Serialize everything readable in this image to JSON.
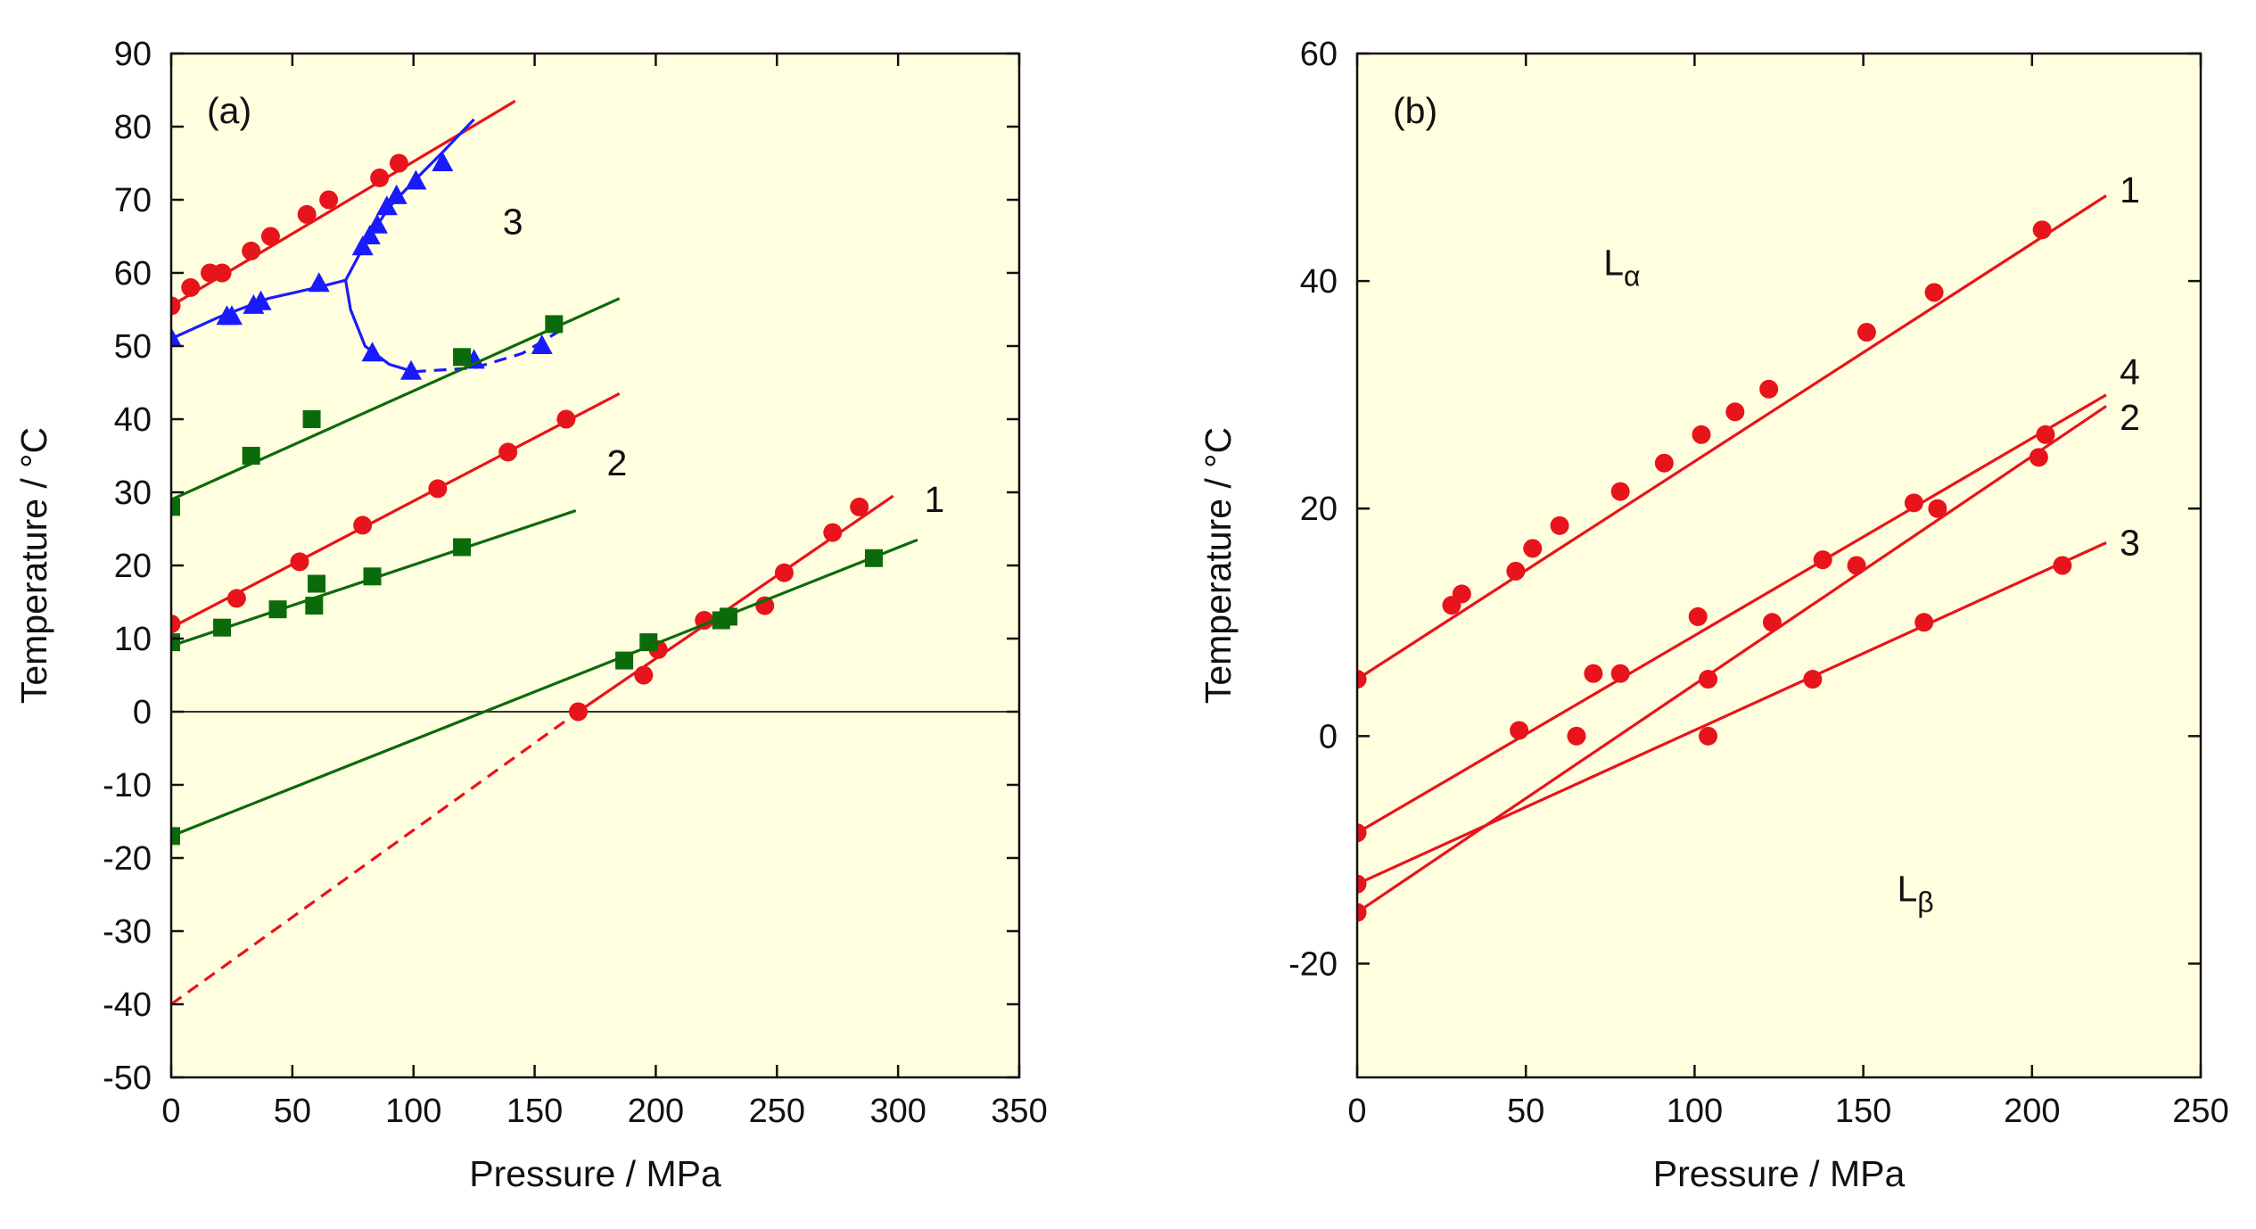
{
  "chart_data": [
    {
      "type": "line",
      "panel_label": "(a)",
      "xlabel": "Pressure / MPa",
      "ylabel": "Temperature / °C",
      "xlim": [
        0,
        350
      ],
      "ylim": [
        -50,
        90
      ],
      "xticks": [
        0,
        50,
        100,
        150,
        200,
        250,
        300,
        350
      ],
      "yticks": [
        -50,
        -40,
        -30,
        -20,
        -10,
        0,
        10,
        20,
        30,
        40,
        50,
        60,
        70,
        80,
        90
      ],
      "background": "#ffffe0",
      "reference_line_y": 0,
      "series": [
        {
          "label": "3",
          "color": "#e8141b",
          "marker": "circle",
          "points": [
            [
              0,
              55.5
            ],
            [
              8,
              58
            ],
            [
              16,
              60
            ],
            [
              21,
              60
            ],
            [
              33,
              63
            ],
            [
              41,
              65
            ],
            [
              56,
              68
            ],
            [
              65,
              70
            ],
            [
              86,
              73
            ],
            [
              94,
              75
            ]
          ],
          "line": [
            [
              0,
              55.5
            ],
            [
              142,
              83.5
            ]
          ]
        },
        {
          "color": "#1a1aff",
          "marker": "triangle",
          "points": [
            [
              0,
              51
            ],
            [
              23,
              54
            ],
            [
              25,
              54
            ],
            [
              34,
              55.5
            ],
            [
              37,
              56
            ],
            [
              61,
              58.5
            ],
            [
              79,
              63.5
            ],
            [
              82,
              65
            ],
            [
              85,
              66.5
            ],
            [
              89,
              69
            ],
            [
              93,
              70.5
            ],
            [
              101,
              72.5
            ],
            [
              112,
              75
            ],
            [
              83,
              49
            ],
            [
              99,
              46.5
            ],
            [
              125,
              48
            ],
            [
              153,
              50
            ]
          ],
          "line": [
            [
              0,
              51
            ],
            [
              20,
              54
            ],
            [
              40,
              56.5
            ],
            [
              60,
              58
            ],
            [
              72,
              59
            ],
            [
              80,
              64
            ],
            [
              90,
              69
            ],
            [
              100,
              72.5
            ],
            [
              112,
              76.5
            ],
            [
              125,
              81
            ]
          ],
          "line_branch": [
            [
              72,
              59
            ],
            [
              74,
              55
            ],
            [
              80,
              50
            ],
            [
              90,
              47.5
            ],
            [
              100,
              46.5
            ]
          ],
          "line_dashed": [
            [
              100,
              46.5
            ],
            [
              125,
              47
            ],
            [
              145,
              49
            ],
            [
              160,
              52
            ]
          ]
        },
        {
          "color": "#0b6b0b",
          "marker": "square",
          "points": [
            [
              0,
              28
            ],
            [
              33,
              35
            ],
            [
              58,
              40
            ],
            [
              120,
              48.5
            ],
            [
              158,
              53
            ]
          ],
          "line": [
            [
              0,
              29
            ],
            [
              185,
              56.5
            ]
          ]
        },
        {
          "label": "2",
          "color": "#e8141b",
          "marker": "circle",
          "points": [
            [
              0,
              12
            ],
            [
              27,
              15.5
            ],
            [
              53,
              20.5
            ],
            [
              79,
              25.5
            ],
            [
              110,
              30.5
            ],
            [
              139,
              35.5
            ],
            [
              163,
              40
            ]
          ],
          "line": [
            [
              0,
              11.5
            ],
            [
              185,
              43.5
            ]
          ]
        },
        {
          "color": "#0b6b0b",
          "marker": "square",
          "points": [
            [
              0,
              9.5
            ],
            [
              21,
              11.5
            ],
            [
              44,
              14
            ],
            [
              59,
              14.5
            ],
            [
              60,
              17.5
            ],
            [
              83,
              18.5
            ],
            [
              120,
              22.5
            ]
          ],
          "line": [
            [
              0,
              9
            ],
            [
              167,
              27.5
            ]
          ]
        },
        {
          "label": "1",
          "color": "#e8141b",
          "marker": "circle",
          "points": [
            [
              168,
              0
            ],
            [
              195,
              5
            ],
            [
              201,
              8.5
            ],
            [
              220,
              12.5
            ],
            [
              245,
              14.5
            ],
            [
              253,
              19
            ],
            [
              273,
              24.5
            ],
            [
              284,
              28
            ]
          ],
          "line": [
            [
              168,
              0
            ],
            [
              298,
              29.5
            ]
          ],
          "line_dashed": [
            [
              0,
              -40
            ],
            [
              168,
              0
            ]
          ]
        },
        {
          "color": "#0b6b0b",
          "marker": "square",
          "points": [
            [
              0,
              -17
            ],
            [
              187,
              7
            ],
            [
              197,
              9.5
            ],
            [
              227,
              12.5
            ],
            [
              230,
              13
            ],
            [
              290,
              21
            ]
          ],
          "line": [
            [
              0,
              -17
            ],
            [
              308,
              23.5
            ]
          ]
        }
      ],
      "curve_labels": [
        {
          "text": "3",
          "x": 141,
          "y": 67
        },
        {
          "text": "2",
          "x": 184,
          "y": 34
        },
        {
          "text": "1",
          "x": 315,
          "y": 29
        }
      ]
    },
    {
      "type": "line",
      "panel_label": "(b)",
      "xlabel": "Pressure / MPa",
      "ylabel": "Temperature / °C",
      "xlim": [
        0,
        250
      ],
      "ylim": [
        -30,
        60
      ],
      "xticks": [
        0,
        50,
        100,
        150,
        200,
        250
      ],
      "yticks": [
        -20,
        0,
        20,
        40,
        60
      ],
      "background": "#ffffe0",
      "phase_labels": [
        {
          "base": "L",
          "sub": "α",
          "x": 73,
          "y": 40.5
        },
        {
          "base": "L",
          "sub": "β",
          "x": 160,
          "y": -14.5
        }
      ],
      "series": [
        {
          "label": "1",
          "color": "#e8141b",
          "marker": "circle",
          "points": [
            [
              0,
              5
            ],
            [
              28,
              11.5
            ],
            [
              31,
              12.5
            ],
            [
              47,
              14.5
            ],
            [
              52,
              16.5
            ],
            [
              60,
              18.5
            ],
            [
              78,
              21.5
            ],
            [
              91,
              24
            ],
            [
              102,
              26.5
            ],
            [
              112,
              28.5
            ],
            [
              122,
              30.5
            ],
            [
              151,
              35.5
            ],
            [
              171,
              39
            ],
            [
              203,
              44.5
            ]
          ],
          "line": [
            [
              0,
              5
            ],
            [
              222,
              47.5
            ]
          ]
        },
        {
          "label": "4",
          "color": "#e8141b",
          "marker": "circle",
          "points": [
            [
              0,
              -8.5
            ],
            [
              48,
              0.5
            ],
            [
              70,
              5.5
            ],
            [
              78,
              5.5
            ],
            [
              101,
              10.5
            ],
            [
              138,
              15.5
            ],
            [
              148,
              15
            ],
            [
              165,
              20.5
            ],
            [
              172,
              20
            ],
            [
              202,
              24.5
            ],
            [
              204,
              26.5
            ]
          ],
          "line": [
            [
              0,
              -8.5
            ],
            [
              222,
              30
            ]
          ]
        },
        {
          "label": "2",
          "color": "#e8141b",
          "marker": "circle",
          "points": [
            [
              0,
              -15.5
            ],
            [
              104,
              5
            ],
            [
              123,
              10
            ]
          ],
          "line": [
            [
              0,
              -15.5
            ],
            [
              222,
              29
            ]
          ]
        },
        {
          "label": "3",
          "color": "#e8141b",
          "marker": "circle",
          "points": [
            [
              0,
              -13
            ],
            [
              65,
              0
            ],
            [
              104,
              0
            ],
            [
              135,
              5
            ],
            [
              168,
              10
            ],
            [
              209,
              15
            ]
          ],
          "line": [
            [
              0,
              -13
            ],
            [
              222,
              17
            ]
          ]
        }
      ],
      "curve_labels": [
        {
          "text": "1",
          "x": 229,
          "y": 48
        },
        {
          "text": "4",
          "x": 229,
          "y": 32
        },
        {
          "text": "2",
          "x": 229,
          "y": 28
        },
        {
          "text": "3",
          "x": 229,
          "y": 17
        }
      ]
    }
  ]
}
